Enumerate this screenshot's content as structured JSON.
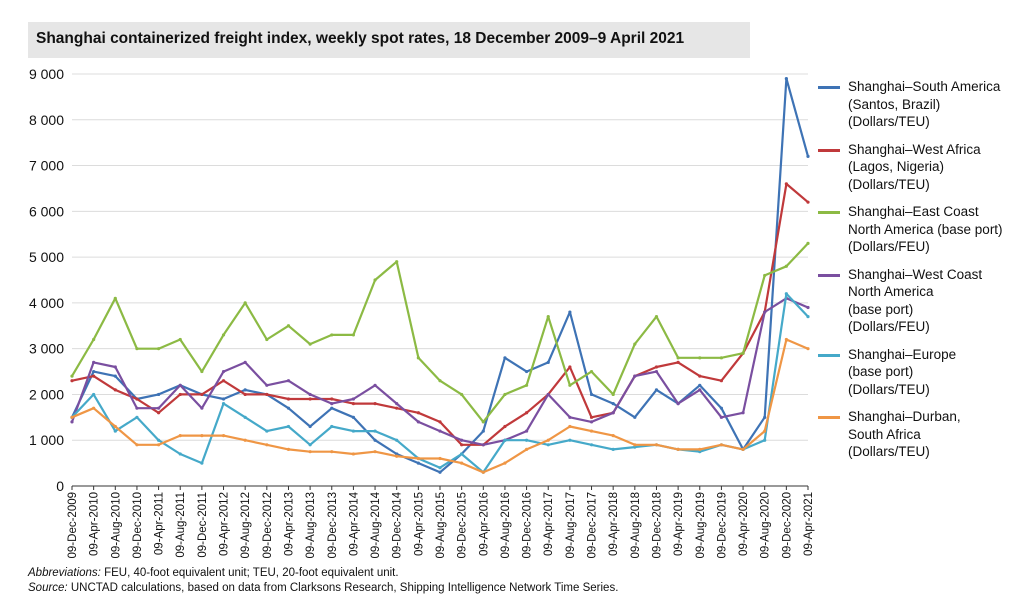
{
  "chart_data": {
    "type": "line",
    "title": "Shanghai containerized freight index, weekly spot rates, 18 December 2009–9 April 2021",
    "xlabel": "",
    "ylabel": "",
    "ylim": [
      0,
      9000
    ],
    "yticks": [
      0,
      1000,
      2000,
      3000,
      4000,
      5000,
      6000,
      7000,
      8000,
      9000
    ],
    "ytick_labels": [
      "0",
      "1 000",
      "2 000",
      "3 000",
      "4 000",
      "5 000",
      "6 000",
      "7 000",
      "8 000",
      "9 000"
    ],
    "xtick_labels": [
      "09-Dec-2009",
      "09-Apr-2010",
      "09-Aug-2010",
      "09-Dec-2010",
      "09-Apr-2011",
      "09-Aug-2011",
      "09-Dec-2011",
      "09-Apr-2012",
      "09-Aug-2012",
      "09-Dec-2012",
      "09-Apr-2013",
      "09-Aug-2013",
      "09-Dec-2013",
      "09-Apr-2014",
      "09-Aug-2014",
      "09-Dec-2014",
      "09-Apr-2015",
      "09-Aug-2015",
      "09-Dec-2015",
      "09-Apr-2016",
      "09-Aug-2016",
      "09-Dec-2016",
      "09-Apr-2017",
      "09-Aug-2017",
      "09-Dec-2017",
      "09-Apr-2018",
      "09-Aug-2018",
      "09-Dec-2018",
      "09-Apr-2019",
      "09-Aug-2019",
      "09-Dec-2019",
      "09-Apr-2020",
      "09-Aug-2020",
      "09-Dec-2020",
      "09-Apr-2021"
    ],
    "grid": true,
    "legend_position": "right",
    "series": [
      {
        "name": "Shanghai–South America\n(Santos, Brazil)\n(Dollars/TEU)",
        "color": "#3e73b5",
        "x": [
          "09-Dec-2009",
          "09-Apr-2010",
          "09-Aug-2010",
          "09-Dec-2010",
          "09-Apr-2011",
          "09-Aug-2011",
          "09-Dec-2011",
          "09-Apr-2012",
          "09-Aug-2012",
          "09-Dec-2012",
          "09-Apr-2013",
          "09-Aug-2013",
          "09-Dec-2013",
          "09-Apr-2014",
          "09-Aug-2014",
          "09-Dec-2014",
          "09-Apr-2015",
          "09-Aug-2015",
          "09-Dec-2015",
          "09-Apr-2016",
          "09-Aug-2016",
          "09-Dec-2016",
          "09-Apr-2017",
          "09-Aug-2017",
          "09-Dec-2017",
          "09-Apr-2018",
          "09-Aug-2018",
          "09-Dec-2018",
          "09-Apr-2019",
          "09-Aug-2019",
          "09-Dec-2019",
          "09-Apr-2020",
          "09-Aug-2020",
          "09-Dec-2020",
          "09-Apr-2021"
        ],
        "values": [
          1500,
          2500,
          2400,
          1900,
          2000,
          2200,
          2000,
          1900,
          2100,
          2000,
          1700,
          1300,
          1700,
          1500,
          1000,
          700,
          500,
          300,
          700,
          1200,
          2800,
          2500,
          2700,
          3800,
          2000,
          1800,
          1500,
          2100,
          1800,
          2200,
          1700,
          800,
          1500,
          8900,
          7200
        ]
      },
      {
        "name": "Shanghai–West Africa\n(Lagos, Nigeria)\n(Dollars/TEU)",
        "color": "#c0393b",
        "x": [
          "09-Dec-2009",
          "09-Apr-2010",
          "09-Aug-2010",
          "09-Dec-2010",
          "09-Apr-2011",
          "09-Aug-2011",
          "09-Dec-2011",
          "09-Apr-2012",
          "09-Aug-2012",
          "09-Dec-2012",
          "09-Apr-2013",
          "09-Aug-2013",
          "09-Dec-2013",
          "09-Apr-2014",
          "09-Aug-2014",
          "09-Dec-2014",
          "09-Apr-2015",
          "09-Aug-2015",
          "09-Dec-2015",
          "09-Apr-2016",
          "09-Aug-2016",
          "09-Dec-2016",
          "09-Apr-2017",
          "09-Aug-2017",
          "09-Dec-2017",
          "09-Apr-2018",
          "09-Aug-2018",
          "09-Dec-2018",
          "09-Apr-2019",
          "09-Aug-2019",
          "09-Dec-2019",
          "09-Apr-2020",
          "09-Aug-2020",
          "09-Dec-2020",
          "09-Apr-2021"
        ],
        "values": [
          2300,
          2400,
          2100,
          1900,
          1600,
          2000,
          2000,
          2300,
          2000,
          2000,
          1900,
          1900,
          1900,
          1800,
          1800,
          1700,
          1600,
          1400,
          900,
          900,
          1300,
          1600,
          2000,
          2600,
          1500,
          1600,
          2400,
          2600,
          2700,
          2400,
          2300,
          2900,
          3800,
          6600,
          6200
        ]
      },
      {
        "name": "Shanghai–East Coast\nNorth America (base port)\n(Dollars/FEU)",
        "color": "#8cba44",
        "x": [
          "09-Dec-2009",
          "09-Apr-2010",
          "09-Aug-2010",
          "09-Dec-2010",
          "09-Apr-2011",
          "09-Aug-2011",
          "09-Dec-2011",
          "09-Apr-2012",
          "09-Aug-2012",
          "09-Dec-2012",
          "09-Apr-2013",
          "09-Aug-2013",
          "09-Dec-2013",
          "09-Apr-2014",
          "09-Aug-2014",
          "09-Dec-2014",
          "09-Apr-2015",
          "09-Aug-2015",
          "09-Dec-2015",
          "09-Apr-2016",
          "09-Aug-2016",
          "09-Dec-2016",
          "09-Apr-2017",
          "09-Aug-2017",
          "09-Dec-2017",
          "09-Apr-2018",
          "09-Aug-2018",
          "09-Dec-2018",
          "09-Apr-2019",
          "09-Aug-2019",
          "09-Dec-2019",
          "09-Apr-2020",
          "09-Aug-2020",
          "09-Dec-2020",
          "09-Apr-2021"
        ],
        "values": [
          2400,
          3200,
          4100,
          3000,
          3000,
          3200,
          2500,
          3300,
          4000,
          3200,
          3500,
          3100,
          3300,
          3300,
          4500,
          4900,
          2800,
          2300,
          2000,
          1400,
          2000,
          2200,
          3700,
          2200,
          2500,
          2000,
          3100,
          3700,
          2800,
          2800,
          2800,
          2900,
          4600,
          4800,
          5300
        ]
      },
      {
        "name": "Shanghai–West Coast\nNorth America\n(base port)\n(Dollars/FEU)",
        "color": "#7a4fa0",
        "x": [
          "09-Dec-2009",
          "09-Apr-2010",
          "09-Aug-2010",
          "09-Dec-2010",
          "09-Apr-2011",
          "09-Aug-2011",
          "09-Dec-2011",
          "09-Apr-2012",
          "09-Aug-2012",
          "09-Dec-2012",
          "09-Apr-2013",
          "09-Aug-2013",
          "09-Dec-2013",
          "09-Apr-2014",
          "09-Aug-2014",
          "09-Dec-2014",
          "09-Apr-2015",
          "09-Aug-2015",
          "09-Dec-2015",
          "09-Apr-2016",
          "09-Aug-2016",
          "09-Dec-2016",
          "09-Apr-2017",
          "09-Aug-2017",
          "09-Dec-2017",
          "09-Apr-2018",
          "09-Aug-2018",
          "09-Dec-2018",
          "09-Apr-2019",
          "09-Aug-2019",
          "09-Dec-2019",
          "09-Apr-2020",
          "09-Aug-2020",
          "09-Dec-2020",
          "09-Apr-2021"
        ],
        "values": [
          1400,
          2700,
          2600,
          1700,
          1700,
          2200,
          1700,
          2500,
          2700,
          2200,
          2300,
          2000,
          1800,
          1900,
          2200,
          1800,
          1400,
          1200,
          1000,
          900,
          1000,
          1200,
          2000,
          1500,
          1400,
          1600,
          2400,
          2500,
          1800,
          2100,
          1500,
          1600,
          3800,
          4100,
          3900
        ]
      },
      {
        "name": "Shanghai–Europe\n(base port)\n(Dollars/TEU)",
        "color": "#45a9c9",
        "x": [
          "09-Dec-2009",
          "09-Apr-2010",
          "09-Aug-2010",
          "09-Dec-2010",
          "09-Apr-2011",
          "09-Aug-2011",
          "09-Dec-2011",
          "09-Apr-2012",
          "09-Aug-2012",
          "09-Dec-2012",
          "09-Apr-2013",
          "09-Aug-2013",
          "09-Dec-2013",
          "09-Apr-2014",
          "09-Aug-2014",
          "09-Dec-2014",
          "09-Apr-2015",
          "09-Aug-2015",
          "09-Dec-2015",
          "09-Apr-2016",
          "09-Aug-2016",
          "09-Dec-2016",
          "09-Apr-2017",
          "09-Aug-2017",
          "09-Dec-2017",
          "09-Apr-2018",
          "09-Aug-2018",
          "09-Dec-2018",
          "09-Apr-2019",
          "09-Aug-2019",
          "09-Dec-2019",
          "09-Apr-2020",
          "09-Aug-2020",
          "09-Dec-2020",
          "09-Apr-2021"
        ],
        "values": [
          1500,
          2000,
          1200,
          1500,
          1000,
          700,
          500,
          1800,
          1500,
          1200,
          1300,
          900,
          1300,
          1200,
          1200,
          1000,
          600,
          400,
          700,
          300,
          1000,
          1000,
          900,
          1000,
          900,
          800,
          850,
          900,
          800,
          750,
          900,
          800,
          1000,
          4200,
          3700
        ]
      },
      {
        "name": "Shanghai–Durban,\nSouth Africa\n(Dollars/TEU)",
        "color": "#ef9645",
        "x": [
          "09-Dec-2009",
          "09-Apr-2010",
          "09-Aug-2010",
          "09-Dec-2010",
          "09-Apr-2011",
          "09-Aug-2011",
          "09-Dec-2011",
          "09-Apr-2012",
          "09-Aug-2012",
          "09-Dec-2012",
          "09-Apr-2013",
          "09-Aug-2013",
          "09-Dec-2013",
          "09-Apr-2014",
          "09-Aug-2014",
          "09-Dec-2014",
          "09-Apr-2015",
          "09-Aug-2015",
          "09-Dec-2015",
          "09-Apr-2016",
          "09-Aug-2016",
          "09-Dec-2016",
          "09-Apr-2017",
          "09-Aug-2017",
          "09-Dec-2017",
          "09-Apr-2018",
          "09-Aug-2018",
          "09-Dec-2018",
          "09-Apr-2019",
          "09-Aug-2019",
          "09-Dec-2019",
          "09-Apr-2020",
          "09-Aug-2020",
          "09-Dec-2020",
          "09-Apr-2021"
        ],
        "values": [
          1500,
          1700,
          1300,
          900,
          900,
          1100,
          1100,
          1100,
          1000,
          900,
          800,
          750,
          750,
          700,
          750,
          650,
          600,
          600,
          500,
          300,
          500,
          800,
          1000,
          1300,
          1200,
          1100,
          900,
          900,
          800,
          800,
          900,
          800,
          1200,
          3200,
          3000
        ]
      }
    ]
  },
  "footnotes": {
    "abbrev_label": "Abbreviations:",
    "abbrev_text": " FEU, 40-foot equivalent unit; TEU, 20-foot equivalent unit.",
    "source_label": "Source:",
    "source_text": " UNCTAD calculations, based on data from Clarksons Research, Shipping Intelligence Network Time Series."
  }
}
